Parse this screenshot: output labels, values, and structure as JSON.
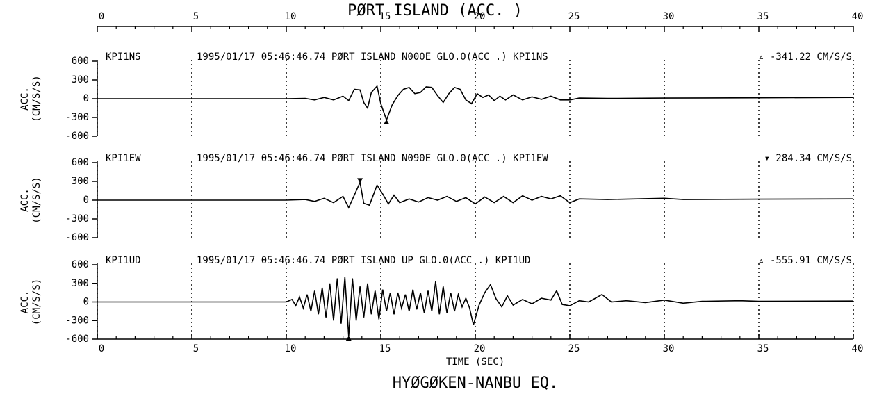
{
  "figure": {
    "title": "PØRT ISLAND (ACC. )",
    "xlabel": "TIME (SEC)",
    "caption": "HYØGØKEN-NANBU EQ."
  },
  "chart_data": [
    {
      "type": "line",
      "ylabel": [
        "ACC.",
        "(CM/S/S)"
      ],
      "header": "1995/01/17 05:46:46.74 PØRT ISLAND N000E GLO.0(ACC .) KPI1NS",
      "peak_label": "▵ -341.22 CM/S/S",
      "peak_value": -341.22,
      "peak_x": 15.3,
      "xlim": [
        0,
        40
      ],
      "xticks": [
        0,
        5,
        10,
        15,
        20,
        25,
        30,
        35,
        40
      ],
      "ylim": [
        -600,
        600
      ],
      "yticks": [
        600,
        300,
        0,
        -300,
        -600
      ],
      "x": [
        0,
        10,
        11,
        11.5,
        12,
        12.5,
        13,
        13.3,
        13.6,
        13.9,
        14.1,
        14.3,
        14.5,
        14.8,
        15,
        15.3,
        15.6,
        15.9,
        16.2,
        16.5,
        16.8,
        17.1,
        17.4,
        17.7,
        18,
        18.3,
        18.6,
        18.9,
        19.2,
        19.5,
        19.8,
        20.1,
        20.4,
        20.7,
        21,
        21.3,
        21.6,
        22,
        22.5,
        23,
        23.5,
        24,
        24.5,
        25,
        25.5,
        27,
        30,
        35,
        40
      ],
      "series": [
        {
          "name": "KPI1NS",
          "color": "#000000",
          "values": [
            0,
            0,
            5,
            -20,
            20,
            -20,
            40,
            -30,
            150,
            140,
            -60,
            -150,
            100,
            200,
            -80,
            -341,
            -100,
            50,
            150,
            180,
            80,
            100,
            190,
            180,
            50,
            -60,
            80,
            180,
            150,
            -20,
            -80,
            80,
            20,
            60,
            -30,
            40,
            -20,
            60,
            -20,
            30,
            -10,
            40,
            -20,
            -20,
            10,
            5,
            10,
            15,
            20
          ]
        }
      ]
    },
    {
      "type": "line",
      "ylabel": [
        "ACC.",
        "(CM/S/S)"
      ],
      "header": "1995/01/17 05:46:46.74 PØRT ISLAND N090E GLO.0(ACC .) KPI1EW",
      "peak_label": "▾ 284.34 CM/S/S",
      "peak_value": 284.34,
      "peak_x": 13.9,
      "xlim": [
        0,
        40
      ],
      "xticks": [
        0,
        5,
        10,
        15,
        20,
        25,
        30,
        35,
        40
      ],
      "ylim": [
        -600,
        600
      ],
      "yticks": [
        600,
        300,
        0,
        -300,
        -600
      ],
      "x": [
        0,
        10,
        11,
        11.5,
        12,
        12.5,
        13,
        13.3,
        13.6,
        13.9,
        14.1,
        14.4,
        14.8,
        15.1,
        15.4,
        15.7,
        16,
        16.5,
        17,
        17.5,
        18,
        18.5,
        19,
        19.5,
        20,
        20.5,
        21,
        21.5,
        22,
        22.5,
        23,
        23.5,
        24,
        24.5,
        25,
        25.5,
        27,
        30,
        31,
        35,
        40
      ],
      "series": [
        {
          "name": "KPI1EW",
          "color": "#000000",
          "values": [
            0,
            0,
            10,
            -20,
            30,
            -40,
            60,
            -120,
            80,
            284,
            -50,
            -80,
            240,
            100,
            -60,
            80,
            -40,
            20,
            -30,
            40,
            0,
            60,
            -20,
            40,
            -60,
            50,
            -40,
            60,
            -40,
            70,
            0,
            60,
            20,
            70,
            -40,
            20,
            10,
            30,
            10,
            15,
            20
          ]
        }
      ]
    },
    {
      "type": "line",
      "ylabel": [
        "ACC.",
        "(CM/S/S)"
      ],
      "header": "1995/01/17 05:46:46.74 PØRT ISLAND UP GLO.0(ACC .) KPI1UD",
      "peak_label": "▵ -555.91 CM/S/S",
      "peak_value": -555.91,
      "peak_x": 13.3,
      "xlim": [
        0,
        40
      ],
      "xticks": [
        0,
        5,
        10,
        15,
        20,
        25,
        30,
        35,
        40
      ],
      "ylim": [
        -600,
        600
      ],
      "yticks": [
        600,
        300,
        0,
        -300,
        -600
      ],
      "x": [
        0,
        10,
        10.3,
        10.5,
        10.7,
        10.9,
        11.1,
        11.3,
        11.5,
        11.7,
        11.9,
        12.1,
        12.3,
        12.5,
        12.7,
        12.9,
        13.1,
        13.3,
        13.5,
        13.7,
        13.9,
        14.1,
        14.3,
        14.5,
        14.7,
        14.9,
        15.1,
        15.3,
        15.5,
        15.7,
        15.9,
        16.1,
        16.3,
        16.5,
        16.7,
        16.9,
        17.1,
        17.3,
        17.5,
        17.7,
        17.9,
        18.1,
        18.3,
        18.5,
        18.7,
        18.9,
        19.1,
        19.3,
        19.5,
        19.7,
        19.9,
        20.2,
        20.5,
        20.8,
        21.1,
        21.4,
        21.7,
        22,
        22.5,
        23,
        23.5,
        24,
        24.3,
        24.6,
        25,
        25.5,
        26,
        26.7,
        27.2,
        28,
        29,
        30,
        31,
        32,
        34,
        35,
        40
      ],
      "series": [
        {
          "name": "KPI1UD",
          "color": "#000000",
          "values": [
            0,
            0,
            40,
            -60,
            80,
            -100,
            120,
            -150,
            180,
            -200,
            230,
            -250,
            300,
            -300,
            380,
            -350,
            400,
            -556,
            380,
            -300,
            250,
            -250,
            300,
            -200,
            180,
            -280,
            200,
            -150,
            150,
            -200,
            150,
            -100,
            120,
            -150,
            200,
            -120,
            150,
            -180,
            180,
            -150,
            330,
            -200,
            250,
            -180,
            150,
            -150,
            120,
            -80,
            60,
            -100,
            -370,
            -50,
            150,
            280,
            50,
            -80,
            100,
            -50,
            40,
            -30,
            60,
            30,
            180,
            -40,
            -60,
            20,
            0,
            120,
            0,
            20,
            -10,
            30,
            -20,
            10,
            20,
            10,
            15
          ]
        }
      ]
    }
  ]
}
